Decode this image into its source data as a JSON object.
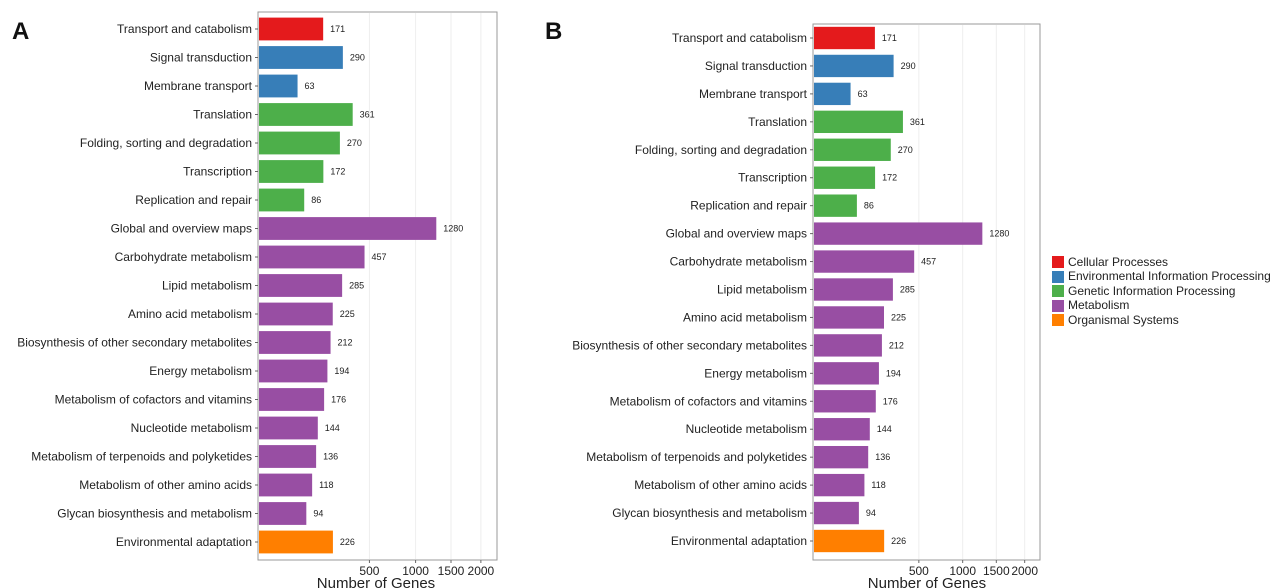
{
  "panels": [
    {
      "letter": "A"
    },
    {
      "letter": "B"
    }
  ],
  "groups": [
    {
      "name": "Cellular Processes",
      "color": "#E41A1C"
    },
    {
      "name": "Environmental Information Processing",
      "color": "#377EB8"
    },
    {
      "name": "Genetic Information Processing",
      "color": "#4DAF4A"
    },
    {
      "name": "Metabolism",
      "color": "#984EA3"
    },
    {
      "name": "Organismal Systems",
      "color": "#FF7F00"
    }
  ],
  "chart_data": [
    {
      "type": "bar",
      "orientation": "horizontal",
      "panel": "A",
      "categories": [
        "Transport and catabolism",
        "Signal transduction",
        "Membrane transport",
        "Translation",
        "Folding, sorting and degradation",
        "Transcription",
        "Replication and repair",
        "Global and overview maps",
        "Carbohydrate metabolism",
        "Lipid metabolism",
        "Amino acid metabolism",
        "Biosynthesis of other secondary metabolites",
        "Energy metabolism",
        "Metabolism of cofactors and vitamins",
        "Nucleotide metabolism",
        "Metabolism of terpenoids and polyketides",
        "Metabolism of other amino acids",
        "Glycan biosynthesis and metabolism",
        "Environmental adaptation"
      ],
      "values": [
        171,
        290,
        63,
        361,
        270,
        172,
        86,
        1280,
        457,
        285,
        225,
        212,
        194,
        176,
        144,
        136,
        118,
        94,
        226
      ],
      "value_labels": [
        "171",
        "290",
        "63",
        "361",
        "270",
        "172",
        "86",
        "1280",
        "457",
        "285",
        "225",
        "212",
        "194",
        "176",
        "144",
        "136",
        "118",
        "94",
        "226"
      ],
      "groups": [
        0,
        1,
        1,
        2,
        2,
        2,
        2,
        3,
        3,
        3,
        3,
        3,
        3,
        3,
        3,
        3,
        3,
        3,
        4
      ],
      "xlabel": "Number of Genes",
      "xscale": "sqrt",
      "xticks": [
        500,
        1000,
        1500,
        2000
      ],
      "xtick_labels": [
        "500",
        "1000",
        "1500",
        "2000"
      ],
      "xlim": [
        0,
        2300
      ],
      "grid": true,
      "legend": "none"
    },
    {
      "type": "bar",
      "orientation": "horizontal",
      "panel": "B",
      "categories": [
        "Transport and catabolism",
        "Signal transduction",
        "Membrane transport",
        "Translation",
        "Folding, sorting and degradation",
        "Transcription",
        "Replication and repair",
        "Global and overview maps",
        "Carbohydrate metabolism",
        "Lipid metabolism",
        "Amino acid metabolism",
        "Biosynthesis of other secondary metabolites",
        "Energy metabolism",
        "Metabolism of cofactors and vitamins",
        "Nucleotide metabolism",
        "Metabolism of terpenoids and polyketides",
        "Metabolism of other amino acids",
        "Glycan biosynthesis and metabolism",
        "Environmental adaptation"
      ],
      "values": [
        171,
        290,
        63,
        361,
        270,
        172,
        86,
        1280,
        457,
        285,
        225,
        212,
        194,
        176,
        144,
        136,
        118,
        94,
        226
      ],
      "value_labels": [
        "171",
        "290",
        "63",
        "361",
        "270",
        "172",
        "86",
        "1280",
        "457",
        "285",
        "225",
        "212",
        "194",
        "176",
        "144",
        "136",
        "118",
        "94",
        "226"
      ],
      "groups": [
        0,
        1,
        1,
        2,
        2,
        2,
        2,
        3,
        3,
        3,
        3,
        3,
        3,
        3,
        3,
        3,
        3,
        3,
        4
      ],
      "xlabel": "Number of Genes",
      "xscale": "sqrt",
      "xticks": [
        500,
        1000,
        1500,
        2000
      ],
      "xtick_labels": [
        "500",
        "1000",
        "1500",
        "2000"
      ],
      "xlim": [
        0,
        2300
      ],
      "grid": true,
      "legend": "right"
    }
  ]
}
